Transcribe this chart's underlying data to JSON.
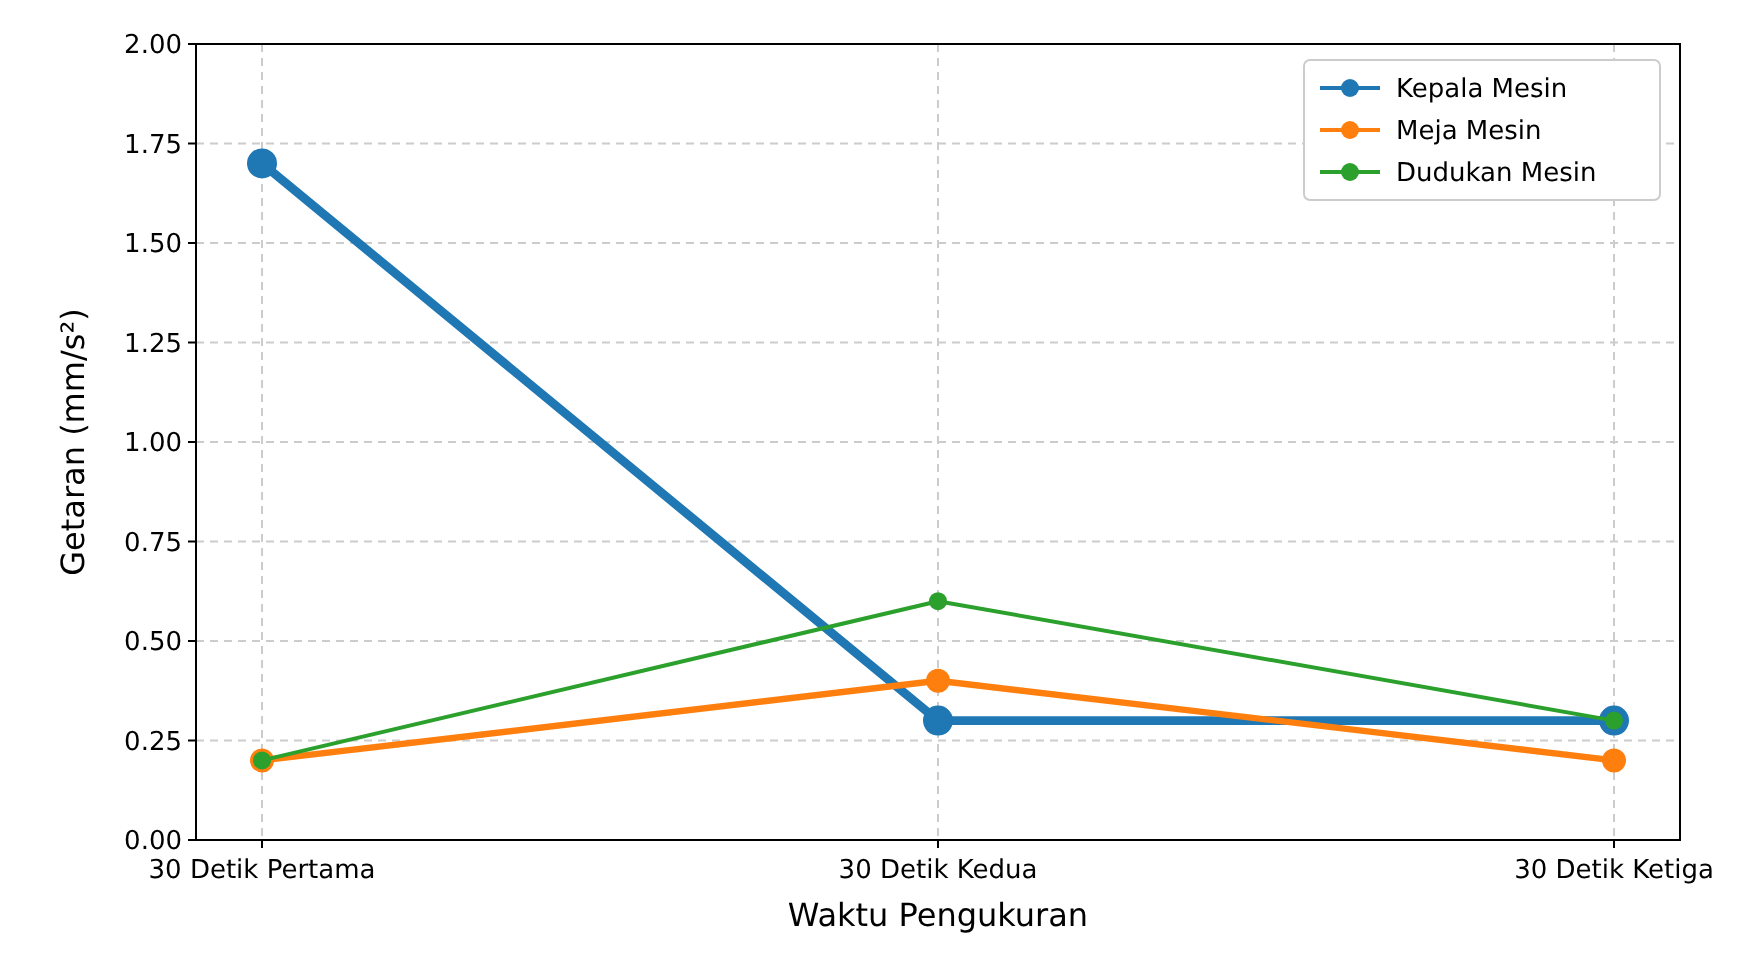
{
  "chart_data": {
    "type": "line",
    "xlabel": "Waktu Pengukuran",
    "ylabel": "Getaran (mm/s²)",
    "categories": [
      "30 Detik Pertama",
      "30 Detik Kedua",
      "30 Detik Ketiga"
    ],
    "series": [
      {
        "name": "Kepala Mesin",
        "color": "#1f77b4",
        "values": [
          1.7,
          0.3,
          0.3
        ]
      },
      {
        "name": "Meja Mesin",
        "color": "#ff7f0e",
        "values": [
          0.2,
          0.4,
          0.2
        ]
      },
      {
        "name": "Dudukan Mesin",
        "color": "#2ca02c",
        "values": [
          0.2,
          0.6,
          0.3
        ]
      }
    ],
    "ylim": [
      0,
      2
    ],
    "yticks": [
      {
        "value": 0,
        "label": "0.00"
      },
      {
        "value": 0.25,
        "label": "0.25"
      },
      {
        "value": 0.5,
        "label": "0.50"
      },
      {
        "value": 0.75,
        "label": "0.75"
      },
      {
        "value": 1,
        "label": "1.00"
      },
      {
        "value": 1.25,
        "label": "1.25"
      },
      {
        "value": 1.5,
        "label": "1.50"
      },
      {
        "value": 1.75,
        "label": "1.75"
      },
      {
        "value": 2,
        "label": "2.00"
      }
    ],
    "grid": true,
    "legend": "top right",
    "marker": "circle",
    "line_style": "solid"
  }
}
